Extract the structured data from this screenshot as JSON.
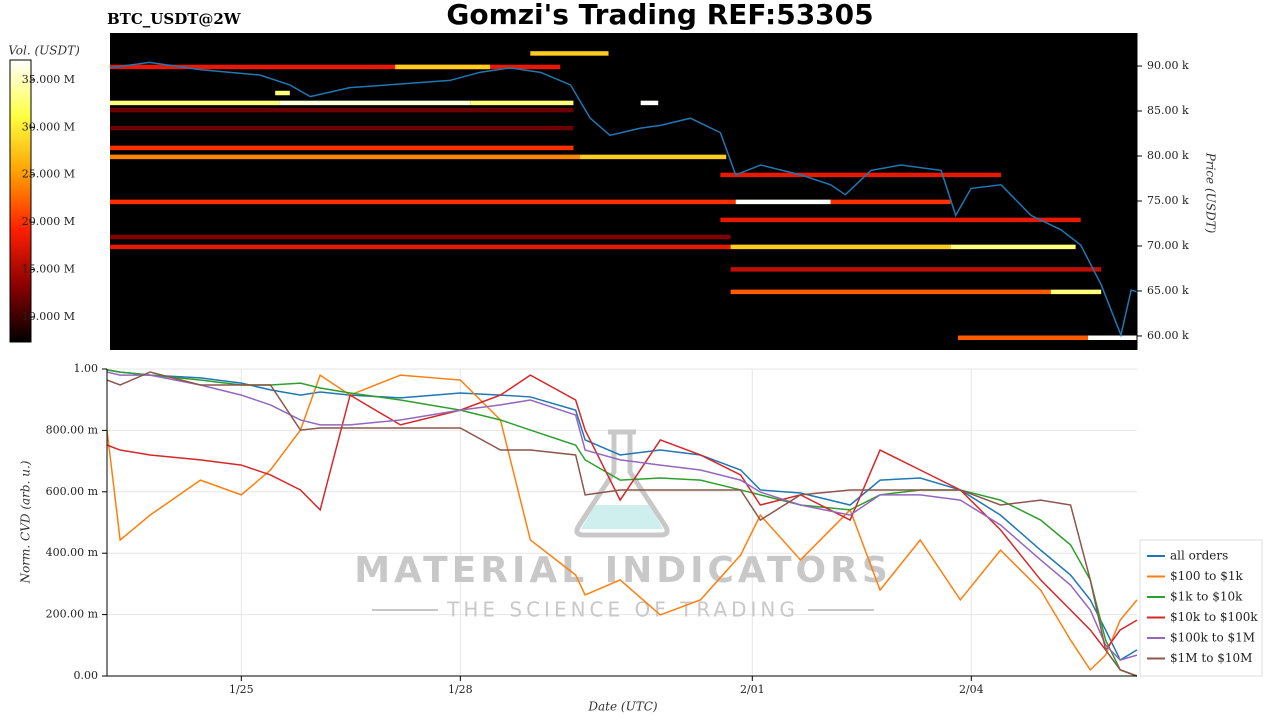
{
  "chart_data": [
    {
      "type": "heatmap",
      "title": "Gomzi's Trading REF:53305",
      "subtitle": "BTC_USDT@2W",
      "ylabel": "Price (USDT)",
      "yaxis_side": "right",
      "xlim": [
        23.21,
        37.26
      ],
      "ylim": [
        58440,
        93670
      ],
      "yticks": [
        {
          "value": 60000,
          "label": "60.00 k"
        },
        {
          "value": 65000,
          "label": "65.00 k"
        },
        {
          "value": 70000,
          "label": "70.00 k"
        },
        {
          "value": 75000,
          "label": "75.00 k"
        },
        {
          "value": 80000,
          "label": "80.00 k"
        },
        {
          "value": 85000,
          "label": "85.00 k"
        },
        {
          "value": 90000,
          "label": "90.00 k"
        }
      ],
      "colormap": [
        "#000000",
        "#8b0000",
        "#ff2000",
        "#ffa000",
        "#ffff40",
        "#ffffff"
      ],
      "colorbar": {
        "label": "Vol. (USDT)",
        "lim": [
          7360000,
          37100000
        ],
        "ticks": [
          {
            "value": 10000000,
            "label": "10.000 M"
          },
          {
            "value": 15000000,
            "label": "15.000 M"
          },
          {
            "value": 20000000,
            "label": "20.000 M"
          },
          {
            "value": 25000000,
            "label": "25.000 M"
          },
          {
            "value": 30000000,
            "label": "30.000 M"
          },
          {
            "value": 35000000,
            "label": "35.000 M"
          }
        ]
      },
      "cells": [
        {
          "price": 89900,
          "start": 23.21,
          "end": 29.37,
          "volume": 18000000
        },
        {
          "price": 89900,
          "start": 27.11,
          "end": 28.41,
          "volume": 28000000
        },
        {
          "price": 91400,
          "start": 28.96,
          "end": 30.03,
          "volume": 28000000
        },
        {
          "price": 87000,
          "start": 25.47,
          "end": 25.67,
          "volume": 33000000
        },
        {
          "price": 85900,
          "start": 23.21,
          "end": 25.53,
          "volume": 33000000
        },
        {
          "price": 85900,
          "start": 25.53,
          "end": 28.14,
          "volume": 36000000
        },
        {
          "price": 85900,
          "start": 28.14,
          "end": 29.55,
          "volume": 33000000
        },
        {
          "price": 85900,
          "start": 30.47,
          "end": 30.71,
          "volume": 37000000
        },
        {
          "price": 85100,
          "start": 23.21,
          "end": 29.55,
          "volume": 12000000
        },
        {
          "price": 83100,
          "start": 23.21,
          "end": 29.55,
          "volume": 12000000
        },
        {
          "price": 80900,
          "start": 23.21,
          "end": 29.55,
          "volume": 20000000
        },
        {
          "price": 79900,
          "start": 23.21,
          "end": 29.64,
          "volume": 24000000
        },
        {
          "price": 79900,
          "start": 29.64,
          "end": 31.64,
          "volume": 28000000
        },
        {
          "price": 77900,
          "start": 31.56,
          "end": 35.4,
          "volume": 18000000
        },
        {
          "price": 74900,
          "start": 23.21,
          "end": 31.77,
          "volume": 20000000
        },
        {
          "price": 74900,
          "start": 31.77,
          "end": 33.07,
          "volume": 37000000
        },
        {
          "price": 74900,
          "start": 33.07,
          "end": 34.71,
          "volume": 20000000
        },
        {
          "price": 72900,
          "start": 31.56,
          "end": 36.49,
          "volume": 18000000
        },
        {
          "price": 71000,
          "start": 23.21,
          "end": 31.7,
          "volume": 13000000
        },
        {
          "price": 69900,
          "start": 23.21,
          "end": 31.7,
          "volume": 18000000
        },
        {
          "price": 69900,
          "start": 31.7,
          "end": 34.71,
          "volume": 28000000
        },
        {
          "price": 69900,
          "start": 34.71,
          "end": 36.42,
          "volume": 33000000
        },
        {
          "price": 67400,
          "start": 31.7,
          "end": 36.77,
          "volume": 16000000
        },
        {
          "price": 64900,
          "start": 31.7,
          "end": 36.08,
          "volume": 22000000
        },
        {
          "price": 64900,
          "start": 36.08,
          "end": 36.77,
          "volume": 33000000
        },
        {
          "price": 59800,
          "start": 34.81,
          "end": 36.59,
          "volume": 22000000
        },
        {
          "price": 59800,
          "start": 36.59,
          "end": 37.26,
          "volume": 37000000
        }
      ],
      "line": {
        "color": "#1f77b4",
        "x": [
          23.21,
          23.75,
          24.44,
          25.26,
          25.67,
          25.95,
          26.49,
          27.18,
          27.86,
          28.27,
          28.68,
          29.1,
          29.51,
          29.78,
          30.05,
          30.47,
          30.74,
          31.15,
          31.56,
          31.77,
          32.11,
          32.66,
          33.07,
          33.27,
          33.62,
          34.03,
          34.58,
          34.78,
          34.99,
          35.4,
          35.81,
          36.22,
          36.49,
          36.77,
          37.04,
          37.18,
          37.26
        ],
        "values": [
          89800,
          90400,
          89600,
          89000,
          87900,
          86600,
          87600,
          88000,
          88400,
          89300,
          89800,
          89300,
          87900,
          84200,
          82300,
          83100,
          83400,
          84200,
          82600,
          77900,
          79000,
          77900,
          76800,
          75700,
          78400,
          79000,
          78400,
          73400,
          76400,
          76800,
          73400,
          71800,
          70100,
          65700,
          60100,
          65100,
          64900
        ]
      }
    },
    {
      "type": "line",
      "xlabel": "Date (UTC)",
      "ylabel": "Norm. CVD (arb. u.)",
      "grid": true,
      "legend": "right",
      "xlim": [
        23.16,
        37.27
      ],
      "ylim": [
        0,
        1
      ],
      "xticks": [
        {
          "value": 25,
          "label": "1/25"
        },
        {
          "value": 28,
          "label": "1/28"
        },
        {
          "value": 32,
          "label": "2/01"
        },
        {
          "value": 35,
          "label": "2/04"
        }
      ],
      "yticks": [
        {
          "value": 0,
          "label": "0.00"
        },
        {
          "value": 0.2,
          "label": "200.00 m"
        },
        {
          "value": 0.4,
          "label": "400.00 m"
        },
        {
          "value": 0.6,
          "label": "600.00 m"
        },
        {
          "value": 0.8,
          "label": "800.00 m"
        },
        {
          "value": 1,
          "label": "1.00"
        }
      ],
      "x": [
        23.16,
        23.34,
        23.75,
        24.44,
        25.0,
        25.4,
        25.81,
        26.08,
        26.49,
        27.18,
        28.0,
        28.55,
        28.96,
        29.58,
        29.71,
        30.19,
        30.74,
        31.29,
        31.84,
        32.11,
        32.66,
        33.34,
        33.75,
        34.3,
        34.85,
        35.4,
        35.95,
        36.36,
        36.63,
        36.84,
        37.04,
        37.27
      ],
      "series": [
        {
          "name": "all orders",
          "color": "#1f77b4",
          "values": [
            0.997,
            0.99,
            0.98,
            0.971,
            0.954,
            0.932,
            0.915,
            0.925,
            0.915,
            0.906,
            0.922,
            0.915,
            0.909,
            0.866,
            0.769,
            0.72,
            0.736,
            0.72,
            0.671,
            0.606,
            0.596,
            0.557,
            0.638,
            0.645,
            0.606,
            0.524,
            0.41,
            0.329,
            0.248,
            0.15,
            0.052,
            0.085
          ]
        },
        {
          "name": "$100 to $1k",
          "color": "#ff7f0e",
          "values": [
            0.801,
            0.443,
            0.524,
            0.638,
            0.59,
            0.671,
            0.801,
            0.98,
            0.915,
            0.98,
            0.964,
            0.834,
            0.443,
            0.329,
            0.264,
            0.313,
            0.199,
            0.248,
            0.394,
            0.524,
            0.378,
            0.541,
            0.28,
            0.443,
            0.248,
            0.41,
            0.28,
            0.117,
            0.02,
            0.068,
            0.182,
            0.248
          ]
        },
        {
          "name": "$1k to $10k",
          "color": "#2ca02c",
          "values": [
            0.997,
            0.99,
            0.98,
            0.964,
            0.948,
            0.948,
            0.954,
            0.938,
            0.922,
            0.899,
            0.866,
            0.834,
            0.801,
            0.752,
            0.704,
            0.638,
            0.645,
            0.638,
            0.606,
            0.59,
            0.557,
            0.541,
            0.59,
            0.606,
            0.606,
            0.573,
            0.508,
            0.427,
            0.313,
            0.117,
            0.02,
            0.0
          ]
        },
        {
          "name": "$10k to $100k",
          "color": "#d62728",
          "values": [
            0.752,
            0.736,
            0.72,
            0.704,
            0.687,
            0.655,
            0.606,
            0.541,
            0.915,
            0.818,
            0.866,
            0.915,
            0.98,
            0.899,
            0.801,
            0.573,
            0.769,
            0.72,
            0.655,
            0.557,
            0.59,
            0.508,
            0.736,
            0.671,
            0.606,
            0.476,
            0.313,
            0.215,
            0.15,
            0.085,
            0.15,
            0.182
          ]
        },
        {
          "name": "$100k to $1M",
          "color": "#9467bd",
          "values": [
            0.99,
            0.98,
            0.98,
            0.948,
            0.915,
            0.883,
            0.834,
            0.818,
            0.818,
            0.834,
            0.866,
            0.883,
            0.899,
            0.85,
            0.736,
            0.704,
            0.687,
            0.671,
            0.638,
            0.599,
            0.557,
            0.524,
            0.59,
            0.59,
            0.573,
            0.492,
            0.378,
            0.296,
            0.215,
            0.101,
            0.052,
            0.068
          ]
        },
        {
          "name": "$1M to $10M",
          "color": "#8c564b",
          "values": [
            0.964,
            0.948,
            0.99,
            0.948,
            0.948,
            0.948,
            0.801,
            0.808,
            0.808,
            0.808,
            0.808,
            0.736,
            0.736,
            0.72,
            0.59,
            0.606,
            0.606,
            0.606,
            0.606,
            0.508,
            0.59,
            0.606,
            0.606,
            0.606,
            0.606,
            0.557,
            0.573,
            0.557,
            0.313,
            0.085,
            0.02,
            0.0
          ]
        }
      ]
    }
  ],
  "watermark": {
    "brand": "MATERIAL INDICATORS",
    "tagline": "THE SCIENCE OF TRADING"
  }
}
